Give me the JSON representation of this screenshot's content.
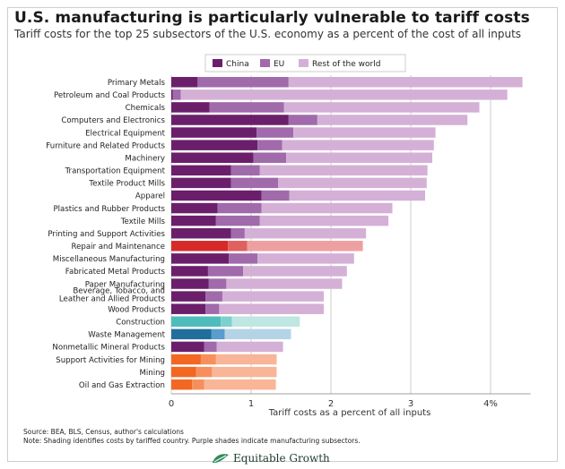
{
  "header": {
    "title": "U.S. manufacturing is particularly vulnerable to tariff costs",
    "subtitle": "Tariff costs for the top 25 subsectors of the U.S. economy as a percent of the cost of all inputs"
  },
  "footer": {
    "source": "Source: BEA, BLS, Census, author's calculations",
    "note": "Note: Shading identifies costs by tariffed country. Purple shades indicate manufacturing subsectors.",
    "brand": "Equitable Growth"
  },
  "colors": {
    "manufacturing": [
      "#6b1f6b",
      "#a06aab",
      "#d4b0d6"
    ],
    "repair": [
      "#d62a2a",
      "#e06060",
      "#eea0a0"
    ],
    "construction": [
      "#4fbcbc",
      "#7fd0cc",
      "#bfe6e2"
    ],
    "waste": [
      "#1f6e9c",
      "#5a9ccc",
      "#b4d4e6"
    ],
    "orange": [
      "#f26722",
      "#f78f5c",
      "#f8b597"
    ],
    "gridline": "#cccccc",
    "axis": "#444444",
    "brand": "#2e8b57"
  },
  "chart_data": {
    "type": "bar",
    "orientation": "horizontal",
    "stacked": true,
    "xlabel": "Tariff costs as a percent of all inputs",
    "xlim": [
      0,
      4.5
    ],
    "xticks": [
      "0",
      "1",
      "2",
      "3",
      "4%"
    ],
    "xtick_values": [
      0,
      1,
      2,
      3,
      4
    ],
    "legend": {
      "placement": "top-center",
      "entries": [
        "China",
        "EU",
        "Rest of the world"
      ]
    },
    "grid": true,
    "categories": [
      {
        "label": "Primary Metals",
        "china": 0.33,
        "eu": 1.14,
        "row": 2.93,
        "palette": "manufacturing"
      },
      {
        "label": "Petroleum and Coal Products",
        "china": 0.02,
        "eu": 0.1,
        "row": 4.09,
        "palette": "manufacturing"
      },
      {
        "label": "Chemicals",
        "china": 0.48,
        "eu": 0.93,
        "row": 2.45,
        "palette": "manufacturing"
      },
      {
        "label": "Computers and Electronics",
        "china": 1.47,
        "eu": 0.36,
        "row": 1.88,
        "palette": "manufacturing"
      },
      {
        "label": "Electrical Equipment",
        "china": 1.07,
        "eu": 0.46,
        "row": 1.78,
        "palette": "manufacturing"
      },
      {
        "label": "Furniture and Related Products",
        "china": 1.08,
        "eu": 0.31,
        "row": 1.9,
        "palette": "manufacturing"
      },
      {
        "label": "Machinery",
        "china": 1.03,
        "eu": 0.41,
        "row": 1.83,
        "palette": "manufacturing"
      },
      {
        "label": "Transportation Equipment",
        "china": 0.75,
        "eu": 0.36,
        "row": 2.1,
        "palette": "manufacturing"
      },
      {
        "label": "Textile Product Mills",
        "china": 0.75,
        "eu": 0.59,
        "row": 1.86,
        "palette": "manufacturing"
      },
      {
        "label": "Apparel",
        "china": 1.13,
        "eu": 0.35,
        "row": 1.7,
        "palette": "manufacturing"
      },
      {
        "label": "Plastics and Rubber Products",
        "china": 0.58,
        "eu": 0.55,
        "row": 1.64,
        "palette": "manufacturing"
      },
      {
        "label": "Textile Mills",
        "china": 0.56,
        "eu": 0.55,
        "row": 1.61,
        "palette": "manufacturing"
      },
      {
        "label": "Printing and Support Activities",
        "china": 0.75,
        "eu": 0.17,
        "row": 1.52,
        "palette": "manufacturing"
      },
      {
        "label": "Repair and Maintenance",
        "china": 0.71,
        "eu": 0.24,
        "row": 1.45,
        "palette": "repair"
      },
      {
        "label": "Miscellaneous Manufacturing",
        "china": 0.72,
        "eu": 0.36,
        "row": 1.21,
        "palette": "manufacturing"
      },
      {
        "label": "Fabricated Metal Products",
        "china": 0.46,
        "eu": 0.44,
        "row": 1.3,
        "palette": "manufacturing"
      },
      {
        "label": "Paper Manufacturing",
        "china": 0.47,
        "eu": 0.22,
        "row": 1.45,
        "palette": "manufacturing"
      },
      {
        "label": "Beverage, Tobacco, and Leather and Allied Products",
        "china": 0.43,
        "eu": 0.21,
        "row": 1.27,
        "palette": "manufacturing"
      },
      {
        "label": "Wood Products",
        "china": 0.43,
        "eu": 0.17,
        "row": 1.31,
        "palette": "manufacturing"
      },
      {
        "label": "Construction",
        "china": 0.62,
        "eu": 0.14,
        "row": 0.85,
        "palette": "construction"
      },
      {
        "label": "Waste Management",
        "china": 0.5,
        "eu": 0.17,
        "row": 0.83,
        "palette": "waste"
      },
      {
        "label": "Nonmetallic Mineral Products",
        "china": 0.41,
        "eu": 0.16,
        "row": 0.83,
        "palette": "manufacturing"
      },
      {
        "label": "Support Activities for Mining",
        "china": 0.37,
        "eu": 0.19,
        "row": 0.76,
        "palette": "orange"
      },
      {
        "label": "Mining",
        "china": 0.31,
        "eu": 0.2,
        "row": 0.81,
        "palette": "orange"
      },
      {
        "label": "Oil and Gas Extraction",
        "china": 0.26,
        "eu": 0.15,
        "row": 0.9,
        "palette": "orange"
      }
    ]
  }
}
